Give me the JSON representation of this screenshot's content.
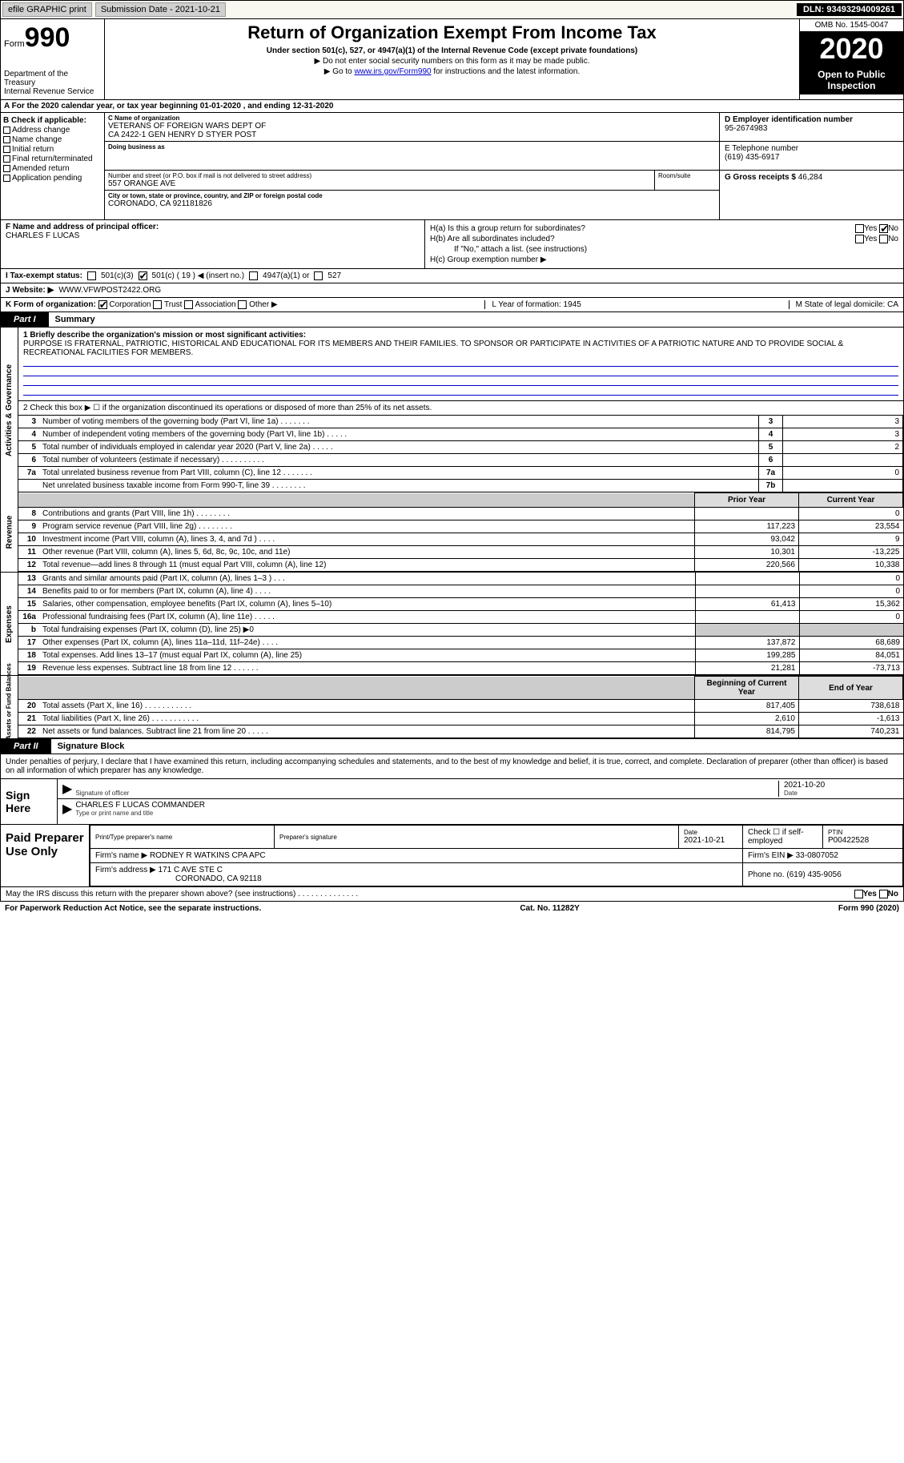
{
  "topbar": {
    "efile": "efile GRAPHIC print",
    "submission_label": "Submission Date - ",
    "submission_date": "2021-10-21",
    "dln_label": "DLN: ",
    "dln": "93493294009261"
  },
  "header": {
    "form_label": "Form",
    "form_number": "990",
    "dept": "Department of the Treasury\nInternal Revenue Service",
    "title": "Return of Organization Exempt From Income Tax",
    "subtitle": "Under section 501(c), 527, or 4947(a)(1) of the Internal Revenue Code (except private foundations)",
    "note1": "▶ Do not enter social security numbers on this form as it may be made public.",
    "note2_pre": "▶ Go to ",
    "note2_link": "www.irs.gov/Form990",
    "note2_post": " for instructions and the latest information.",
    "omb": "OMB No. 1545-0047",
    "year": "2020",
    "inspect": "Open to Public Inspection"
  },
  "period": "A For the 2020 calendar year, or tax year beginning 01-01-2020     , and ending 12-31-2020",
  "boxB": {
    "label": "B Check if applicable:",
    "items": [
      "Address change",
      "Name change",
      "Initial return",
      "Final return/terminated",
      "Amended return",
      "Application pending"
    ]
  },
  "boxC": {
    "name_label": "C Name of organization",
    "name": "VETERANS OF FOREIGN WARS DEPT OF\nCA 2422-1 GEN HENRY D STYER POST",
    "dba_label": "Doing business as",
    "dba": "",
    "street_label": "Number and street (or P.O. box if mail is not delivered to street address)",
    "street": "557 ORANGE AVE",
    "room_label": "Room/suite",
    "city_label": "City or town, state or province, country, and ZIP or foreign postal code",
    "city": "CORONADO, CA  921181826"
  },
  "boxD": {
    "label": "D Employer identification number",
    "value": "95-2674983"
  },
  "boxE": {
    "label": "E Telephone number",
    "value": "(619) 435-6917"
  },
  "boxG": {
    "label": "G Gross receipts $ ",
    "value": "46,284"
  },
  "boxF": {
    "label": "F Name and address of principal officer:",
    "value": "CHARLES F LUCAS"
  },
  "boxH": {
    "ha": "H(a)  Is this a group return for subordinates?",
    "ha_no": true,
    "hb": "H(b)  Are all subordinates included?",
    "hb_note": "If \"No,\" attach a list. (see instructions)",
    "hc": "H(c)  Group exemption number ▶"
  },
  "status": {
    "label": "I   Tax-exempt status:",
    "c3": "501(c)(3)",
    "c": "501(c) ( 19 ) ◀ (insert no.)",
    "c_checked": true,
    "a": "4947(a)(1) or",
    "t527": "527"
  },
  "website": {
    "label": "J   Website: ▶",
    "value": "WWW.VFWPOST2422.ORG"
  },
  "korg": {
    "k": "K Form of organization:",
    "corp": "Corporation",
    "corp_checked": true,
    "trust": "Trust",
    "assoc": "Association",
    "other": "Other ▶",
    "l": "L Year of formation: 1945",
    "m": "M State of legal domicile: CA"
  },
  "part1": {
    "tab": "Part I",
    "title": "Summary"
  },
  "gov": {
    "vert": "Activities & Governance",
    "q1_label": "1   Briefly describe the organization's mission or most significant activities:",
    "q1_text": "PURPOSE IS FRATERNAL, PATRIOTIC, HISTORICAL AND EDUCATIONAL FOR ITS MEMBERS AND THEIR FAMILIES. TO SPONSOR OR PARTICIPATE IN ACTIVITIES OF A PATRIOTIC NATURE AND TO PROVIDE SOCIAL & RECREATIONAL FACILITIES FOR MEMBERS.",
    "q2": "2   Check this box ▶ ☐  if the organization discontinued its operations or disposed of more than 25% of its net assets.",
    "rows": [
      {
        "n": "3",
        "t": "Number of voting members of the governing body (Part VI, line 1a)   .    .    .    .    .    .    .",
        "rn": "3",
        "v": "3"
      },
      {
        "n": "4",
        "t": "Number of independent voting members of the governing body (Part VI, line 1b)    .    .    .    .    .",
        "rn": "4",
        "v": "3"
      },
      {
        "n": "5",
        "t": "Total number of individuals employed in calendar year 2020 (Part V, line 2a)    .    .    .    .    .",
        "rn": "5",
        "v": "2"
      },
      {
        "n": "6",
        "t": "Total number of volunteers (estimate if necessary)    .    .    .    .    .    .    .    .    .    .",
        "rn": "6",
        "v": ""
      },
      {
        "n": "7a",
        "t": "Total unrelated business revenue from Part VIII, column (C), line 12    .    .    .    .    .    .    .",
        "rn": "7a",
        "v": "0"
      },
      {
        "n": "",
        "t": "Net unrelated business taxable income from Form 990-T, line 39    .    .    .    .    .    .    .    .",
        "rn": "7b",
        "v": ""
      }
    ]
  },
  "rev": {
    "vert": "Revenue",
    "py_hdr": "Prior Year",
    "cy_hdr": "Current Year",
    "rows": [
      {
        "n": "8",
        "t": "Contributions and grants (Part VIII, line 1h)    .    .    .    .    .    .    .    .",
        "py": "",
        "cy": "0"
      },
      {
        "n": "9",
        "t": "Program service revenue (Part VIII, line 2g)    .    .    .    .    .    .    .    .",
        "py": "117,223",
        "cy": "23,554"
      },
      {
        "n": "10",
        "t": "Investment income (Part VIII, column (A), lines 3, 4, and 7d )    .    .    .    .",
        "py": "93,042",
        "cy": "9"
      },
      {
        "n": "11",
        "t": "Other revenue (Part VIII, column (A), lines 5, 6d, 8c, 9c, 10c, and 11e)",
        "py": "10,301",
        "cy": "-13,225"
      },
      {
        "n": "12",
        "t": "Total revenue—add lines 8 through 11 (must equal Part VIII, column (A), line 12)",
        "py": "220,566",
        "cy": "10,338"
      }
    ]
  },
  "exp": {
    "vert": "Expenses",
    "rows": [
      {
        "n": "13",
        "t": "Grants and similar amounts paid (Part IX, column (A), lines 1–3 )    .    .    .",
        "py": "",
        "cy": "0"
      },
      {
        "n": "14",
        "t": "Benefits paid to or for members (Part IX, column (A), line 4)    .    .    .    .",
        "py": "",
        "cy": "0"
      },
      {
        "n": "15",
        "t": "Salaries, other compensation, employee benefits (Part IX, column (A), lines 5–10)",
        "py": "61,413",
        "cy": "15,362"
      },
      {
        "n": "16a",
        "t": "Professional fundraising fees (Part IX, column (A), line 11e)    .    .    .    .    .",
        "py": "",
        "cy": "0"
      },
      {
        "n": "b",
        "t": "Total fundraising expenses (Part IX, column (D), line 25) ▶0",
        "py": "",
        "cy": "",
        "shade": true
      },
      {
        "n": "17",
        "t": "Other expenses (Part IX, column (A), lines 11a–11d, 11f–24e)    .    .    .    .",
        "py": "137,872",
        "cy": "68,689"
      },
      {
        "n": "18",
        "t": "Total expenses. Add lines 13–17 (must equal Part IX, column (A), line 25)",
        "py": "199,285",
        "cy": "84,051"
      },
      {
        "n": "19",
        "t": "Revenue less expenses. Subtract line 18 from line 12    .    .    .    .    .    .",
        "py": "21,281",
        "cy": "-73,713"
      }
    ]
  },
  "net": {
    "vert": "Net Assets or Fund Balances",
    "boy_hdr": "Beginning of Current Year",
    "eoy_hdr": "End of Year",
    "rows": [
      {
        "n": "20",
        "t": "Total assets (Part X, line 16)    .    .    .    .    .    .    .    .    .    .    .",
        "py": "817,405",
        "cy": "738,618"
      },
      {
        "n": "21",
        "t": "Total liabilities (Part X, line 26)    .    .    .    .    .    .    .    .    .    .    .",
        "py": "2,610",
        "cy": "-1,613"
      },
      {
        "n": "22",
        "t": "Net assets or fund balances. Subtract line 21 from line 20    .    .    .    .    .",
        "py": "814,795",
        "cy": "740,231"
      }
    ]
  },
  "part2": {
    "tab": "Part II",
    "title": "Signature Block"
  },
  "sig": {
    "text": "Under penalties of perjury, I declare that I have examined this return, including accompanying schedules and statements, and to the best of my knowledge and belief, it is true, correct, and complete. Declaration of preparer (other than officer) is based on all information of which preparer has any knowledge.",
    "here": "Sign Here",
    "sig_label": "Signature of officer",
    "sig_date": "2021-10-20",
    "date_label": "Date",
    "name": "CHARLES F LUCAS  COMMANDER",
    "name_label": "Type or print name and title"
  },
  "prep": {
    "left": "Paid Preparer Use Only",
    "r1": {
      "c1_lbl": "Print/Type preparer's name",
      "c1": "",
      "c2_lbl": "Preparer's signature",
      "c2": "",
      "c3_lbl": "Date",
      "c3": "2021-10-21",
      "c4": "Check ☐  if self-employed",
      "c5_lbl": "PTIN",
      "c5": "P00422528"
    },
    "r2": {
      "c1_lbl": "Firm's name    ▶",
      "c1": "RODNEY R WATKINS CPA APC",
      "c2_lbl": "Firm's EIN ▶",
      "c2": "33-0807052"
    },
    "r3": {
      "c1_lbl": "Firm's address ▶",
      "c1": "171 C AVE STE C",
      "c1b": "CORONADO, CA  92118",
      "c2_lbl": "Phone no.",
      "c2": "(619) 435-9056"
    }
  },
  "discuss": {
    "text": "May the IRS discuss this return with the preparer shown above? (see instructions)    .    .    .    .    .    .    .    .    .    .    .    .    .    .",
    "yes": "Yes",
    "no": "No"
  },
  "footer": {
    "left": "For Paperwork Reduction Act Notice, see the separate instructions.",
    "mid": "Cat. No. 11282Y",
    "right": "Form 990 (2020)"
  }
}
